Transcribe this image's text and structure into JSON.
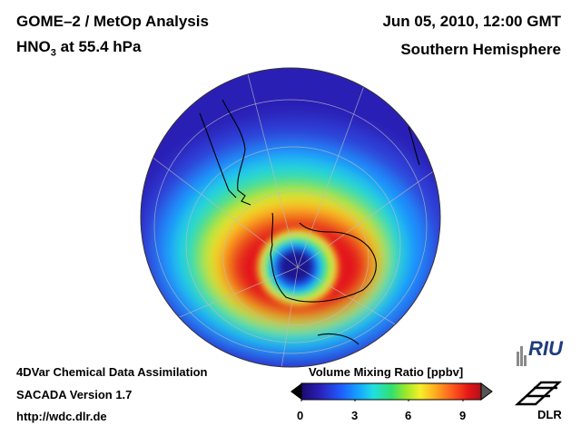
{
  "header": {
    "title_line1": "GOME–2 / MetOp Analysis",
    "title_species": "HNO",
    "title_sub": "3",
    "title_level": " at 55.4 hPa",
    "date": "Jun 05, 2010, 12:00 GMT",
    "hemisphere": "Southern Hemisphere"
  },
  "footer": {
    "line1": "4DVar Chemical Data Assimilation",
    "line2": "SACADA Version 1.7",
    "line3": "http://wdc.dlr.de"
  },
  "colorbar": {
    "title": "Volume Mixing Ratio [ppbv]",
    "ticks": [
      "0",
      "3",
      "6",
      "9"
    ],
    "colors": [
      "#1a0a6e",
      "#2a1fb5",
      "#1f5cff",
      "#14a6ff",
      "#20e0e0",
      "#30e070",
      "#9ae82a",
      "#f5f02a",
      "#ffb01e",
      "#ff5a1e",
      "#e51616",
      "#b0101a"
    ]
  },
  "logos": {
    "riu": "RIU",
    "dlr": "DLR"
  },
  "map": {
    "colors": {
      "background_low": "#2a1fb5",
      "outer": "#2f3fd8",
      "mid": "#1f8cff",
      "cyan": "#20d8e0",
      "green": "#44e04a",
      "yellow": "#f0ea2a",
      "orange": "#ff8c1e",
      "red": "#e3161a",
      "vortex_core": "#1a1590",
      "coast": "#000000",
      "grid": "#bfbfbf"
    }
  }
}
